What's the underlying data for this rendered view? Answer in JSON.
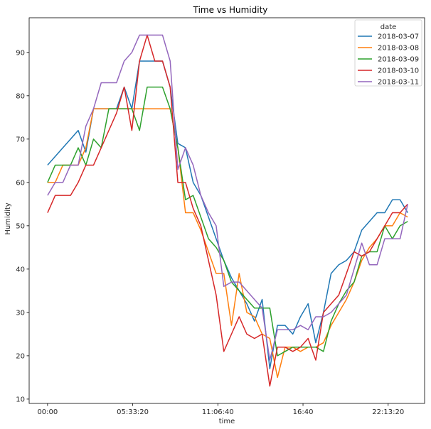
{
  "chart_data": {
    "type": "line",
    "title": "Time vs Humidity",
    "xlabel": "time",
    "ylabel": "Humidity",
    "x": [
      "00:00",
      "00:30",
      "01:00",
      "01:30",
      "02:00",
      "02:30",
      "03:00",
      "03:30",
      "04:00",
      "04:30",
      "05:00",
      "05:30",
      "06:00",
      "06:30",
      "07:00",
      "07:30",
      "08:00",
      "08:30",
      "09:00",
      "09:30",
      "10:00",
      "10:30",
      "11:00",
      "11:30",
      "12:00",
      "12:30",
      "13:00",
      "13:30",
      "14:00",
      "14:30",
      "15:00",
      "15:30",
      "16:00",
      "16:30",
      "17:00",
      "17:30",
      "18:00",
      "18:30",
      "19:00",
      "19:30",
      "20:00",
      "20:30",
      "21:00",
      "21:30",
      "22:00",
      "22:30",
      "23:00",
      "23:30"
    ],
    "x_ticks": [
      "00:00",
      "05:33:20",
      "11:06:40",
      "16:40",
      "22:13:20"
    ],
    "y_ticks": [
      10,
      20,
      30,
      40,
      50,
      60,
      70,
      80,
      90
    ],
    "ylim": [
      9,
      98
    ],
    "xlim_hours": [
      -1.2,
      24.6
    ],
    "legend": {
      "title": "date",
      "placement": "top-right"
    },
    "grid": false,
    "series": [
      {
        "name": "2018-03-07",
        "color": "#1f77b4",
        "values": [
          64,
          66,
          68,
          70,
          72,
          67,
          77,
          77,
          77,
          77,
          82,
          77,
          88,
          88,
          88,
          88,
          82,
          69,
          68,
          60,
          57,
          52,
          47,
          42,
          38,
          35,
          32,
          28,
          33,
          17,
          27,
          27,
          25,
          29,
          32,
          23,
          30,
          39,
          41,
          42,
          44,
          49,
          51,
          53,
          53,
          56,
          56,
          53
        ]
      },
      {
        "name": "2018-03-08",
        "color": "#ff7f0e",
        "values": [
          60,
          60,
          64,
          64,
          64,
          68,
          77,
          77,
          77,
          77,
          77,
          77,
          77,
          77,
          77,
          77,
          77,
          68,
          53,
          53,
          49,
          44,
          39,
          39,
          27,
          39,
          30,
          29,
          25,
          24,
          15,
          22,
          22,
          21,
          22,
          22,
          23,
          27,
          30,
          33,
          37,
          42,
          45,
          47,
          50,
          50,
          53,
          52
        ]
      },
      {
        "name": "2018-03-09",
        "color": "#2ca02c",
        "values": [
          60,
          64,
          64,
          64,
          68,
          64,
          70,
          68,
          77,
          77,
          77,
          77,
          72,
          82,
          82,
          82,
          77,
          68,
          56,
          57,
          52,
          47,
          45,
          42,
          37,
          35,
          33,
          31,
          31,
          31,
          20,
          21,
          22,
          22,
          22,
          22,
          21,
          28,
          32,
          35,
          37,
          43,
          44,
          44,
          50,
          47,
          50,
          51
        ]
      },
      {
        "name": "2018-03-10",
        "color": "#d62728",
        "values": [
          53,
          57,
          57,
          57,
          60,
          64,
          64,
          68,
          72,
          76,
          82,
          72,
          88,
          94,
          88,
          88,
          82,
          60,
          60,
          54,
          50,
          42,
          34,
          21,
          25,
          29,
          25,
          24,
          25,
          13,
          22,
          22,
          21,
          22,
          24,
          19,
          30,
          32,
          34,
          39,
          44,
          43,
          44,
          47,
          50,
          53,
          53,
          55
        ]
      },
      {
        "name": "2018-03-11",
        "color": "#9467bd",
        "values": [
          57,
          60,
          60,
          64,
          64,
          73,
          77,
          83,
          83,
          83,
          88,
          90,
          94,
          94,
          94,
          94,
          88,
          63,
          68,
          64,
          57,
          53,
          50,
          36,
          37,
          37,
          35,
          33,
          31,
          19,
          26,
          26,
          26,
          27,
          26,
          29,
          29,
          30,
          32,
          34,
          40,
          46,
          41,
          41,
          47,
          47,
          47,
          55
        ]
      }
    ]
  }
}
